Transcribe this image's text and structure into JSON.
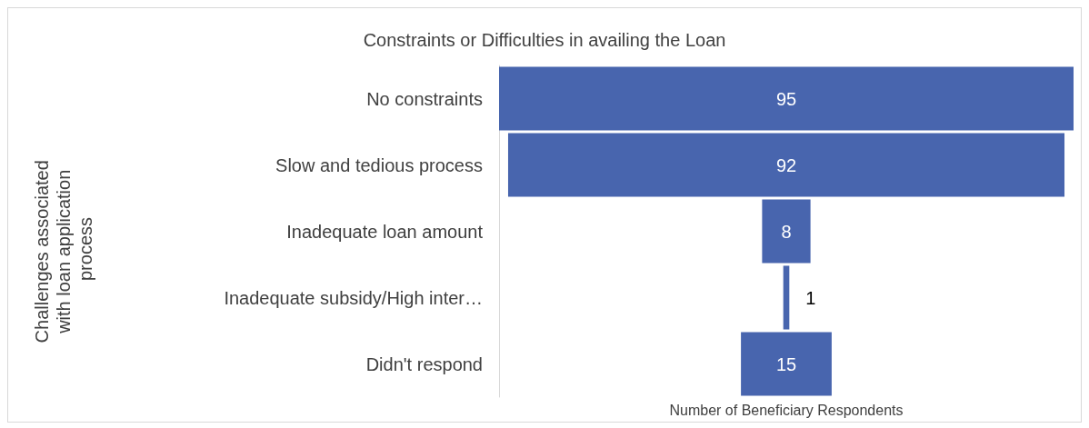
{
  "chart_data": {
    "type": "other",
    "title": "Constraints or Difficulties in availing the Loan",
    "xlabel": "Number of Beneficiary Respondents",
    "ylabel": "Challenges associated with loan application process",
    "categories": [
      "No constraints",
      "Slow and tedious process",
      "Inadequate loan amount",
      "Inadequate subsidy/High inter…",
      "Didn't respond"
    ],
    "values": [
      95,
      92,
      8,
      1,
      15
    ],
    "color": "#4865ae",
    "data_labels": true
  }
}
